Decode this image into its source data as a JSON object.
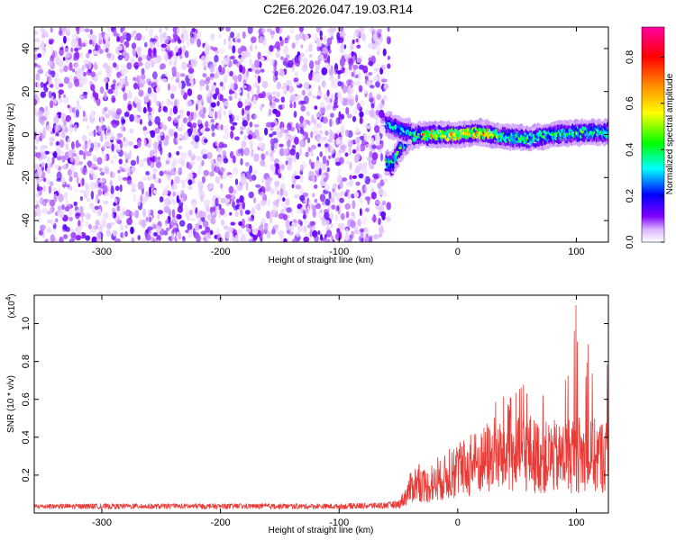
{
  "figure": {
    "title": "C2E6.2026.047.19.03.R14"
  },
  "chart_data": [
    {
      "type": "heatmap",
      "xlabel": "Height of straight line (km)",
      "ylabel": "Frequency (Hz)",
      "xlim": [
        -357,
        127
      ],
      "ylim": [
        -50,
        50
      ],
      "x_ticks": [
        -300,
        -200,
        -100,
        0,
        100
      ],
      "y_ticks": [
        -40,
        -20,
        0,
        20,
        40
      ],
      "noise_region": {
        "x": [
          -357,
          -58
        ],
        "frequency": [
          -50,
          50
        ],
        "amplitude": [
          0.02,
          0.15
        ]
      },
      "signal_track": [
        {
          "x": -60,
          "f": -13
        },
        {
          "x": -55,
          "f": -14
        },
        {
          "x": -50,
          "f": -8
        },
        {
          "x": -45,
          "f": -4
        },
        {
          "x": -40,
          "f": -1
        },
        {
          "x": -30,
          "f": 0
        },
        {
          "x": -20,
          "f": 0
        },
        {
          "x": 0,
          "f": 0
        },
        {
          "x": 20,
          "f": 1
        },
        {
          "x": 40,
          "f": -1
        },
        {
          "x": 60,
          "f": -2
        },
        {
          "x": 80,
          "f": 0
        },
        {
          "x": 100,
          "f": 1
        },
        {
          "x": 127,
          "f": 1
        }
      ],
      "signal_branch": [
        {
          "x": -60,
          "f": 5
        },
        {
          "x": -50,
          "f": 3
        },
        {
          "x": -40,
          "f": 1
        }
      ],
      "colorbar": {
        "label": "Normalized spectral amplitude",
        "range": [
          0,
          0.93
        ],
        "ticks": [
          "0.0",
          "0.2",
          "0.4",
          "0.6",
          "0.8"
        ]
      }
    },
    {
      "type": "line",
      "xlabel": "Height of straight line (km)",
      "ylabel": "SNR (10 * v/v)",
      "y_multiplier": "(x10",
      "y_multiplier_exp": "4",
      "y_multiplier_close": ")",
      "xlim": [
        -357,
        127
      ],
      "ylim": [
        0,
        1.15
      ],
      "x_ticks": [
        -300,
        -200,
        -100,
        0,
        100
      ],
      "y_ticks": [
        "0.2",
        "0.4",
        "0.6",
        "0.8",
        "1.0"
      ],
      "color": "#e83a36",
      "series": [
        {
          "x": [
            -357,
            -300,
            -250,
            -200,
            -150,
            -100,
            -60,
            -50,
            -45,
            -40,
            -35,
            -30,
            -25,
            -20,
            -15,
            -10,
            -5,
            0,
            5,
            10,
            15,
            20,
            25,
            30,
            35,
            40,
            45,
            50,
            55,
            60,
            65,
            70,
            75,
            80,
            85,
            90,
            95,
            100,
            105,
            110,
            115,
            120,
            127
          ],
          "mean": [
            0.035,
            0.035,
            0.035,
            0.035,
            0.035,
            0.035,
            0.04,
            0.045,
            0.08,
            0.13,
            0.16,
            0.15,
            0.14,
            0.15,
            0.17,
            0.19,
            0.2,
            0.21,
            0.22,
            0.24,
            0.26,
            0.27,
            0.28,
            0.29,
            0.3,
            0.3,
            0.31,
            0.3,
            0.31,
            0.32,
            0.3,
            0.3,
            0.29,
            0.3,
            0.28,
            0.3,
            0.31,
            0.32,
            0.3,
            0.29,
            0.3,
            0.3,
            0.3
          ],
          "peak": [
            0.045,
            0.05,
            0.05,
            0.05,
            0.05,
            0.05,
            0.055,
            0.07,
            0.22,
            0.3,
            0.28,
            0.25,
            0.22,
            0.28,
            0.33,
            0.32,
            0.36,
            0.38,
            0.4,
            0.42,
            0.45,
            0.5,
            0.54,
            0.58,
            0.6,
            0.62,
            0.63,
            0.64,
            0.7,
            0.66,
            0.68,
            0.73,
            0.7,
            0.76,
            0.78,
            0.83,
            0.84,
            1.13,
            0.86,
            0.92,
            0.88,
            0.85,
            0.82
          ]
        }
      ]
    }
  ]
}
